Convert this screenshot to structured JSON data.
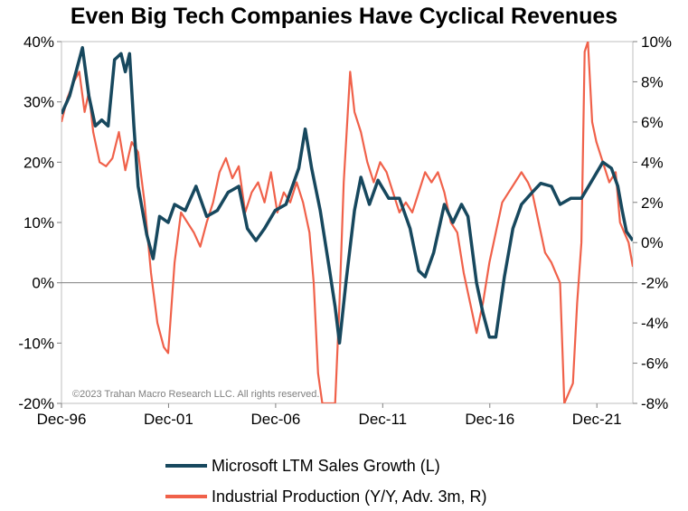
{
  "chart_data": {
    "type": "line",
    "title": "Even Big Tech Companies Have Cyclical Revenues",
    "x_ticks": [
      "Dec-96",
      "Dec-01",
      "Dec-06",
      "Dec-11",
      "Dec-16",
      "Dec-21"
    ],
    "x_range": [
      1996.92,
      2023.6
    ],
    "y_left": {
      "range": [
        -20,
        40
      ],
      "ticks": [
        "-20%",
        "-10%",
        "0%",
        "10%",
        "20%",
        "30%",
        "40%"
      ]
    },
    "y_right": {
      "range": [
        -8,
        10
      ],
      "ticks": [
        "-8%",
        "-6%",
        "-4%",
        "-2%",
        "0%",
        "2%",
        "4%",
        "6%",
        "8%",
        "10%"
      ]
    },
    "watermark": "©2023 Trahan Macro Research LLC. All rights reserved.",
    "series": [
      {
        "name": "Microsoft LTM Sales Growth (L)",
        "axis": "left",
        "color": "#17485e",
        "points": [
          [
            1996.92,
            28
          ],
          [
            1997.3,
            31
          ],
          [
            1997.6,
            35
          ],
          [
            1997.9,
            39
          ],
          [
            1998.2,
            31
          ],
          [
            1998.5,
            26
          ],
          [
            1998.8,
            27
          ],
          [
            1999.1,
            26
          ],
          [
            1999.4,
            37
          ],
          [
            1999.7,
            38
          ],
          [
            1999.9,
            35
          ],
          [
            2000.1,
            38
          ],
          [
            2000.3,
            26
          ],
          [
            2000.5,
            16
          ],
          [
            2000.9,
            8
          ],
          [
            2001.2,
            4
          ],
          [
            2001.5,
            11
          ],
          [
            2001.9,
            10
          ],
          [
            2002.2,
            13
          ],
          [
            2002.7,
            12
          ],
          [
            2003.2,
            16
          ],
          [
            2003.7,
            11
          ],
          [
            2004.2,
            12
          ],
          [
            2004.7,
            15
          ],
          [
            2005.2,
            16
          ],
          [
            2005.6,
            9
          ],
          [
            2006.0,
            7
          ],
          [
            2006.4,
            9
          ],
          [
            2006.9,
            12
          ],
          [
            2007.4,
            13
          ],
          [
            2008.0,
            19
          ],
          [
            2008.3,
            25.5
          ],
          [
            2008.6,
            19
          ],
          [
            2009.0,
            12
          ],
          [
            2009.4,
            3
          ],
          [
            2009.7,
            -4
          ],
          [
            2009.9,
            -10
          ],
          [
            2010.2,
            0
          ],
          [
            2010.6,
            12
          ],
          [
            2010.9,
            17.5
          ],
          [
            2011.3,
            13
          ],
          [
            2011.7,
            17
          ],
          [
            2012.2,
            14
          ],
          [
            2012.7,
            14
          ],
          [
            2013.2,
            9
          ],
          [
            2013.6,
            2
          ],
          [
            2013.9,
            1
          ],
          [
            2014.3,
            5
          ],
          [
            2014.8,
            13
          ],
          [
            2015.2,
            10
          ],
          [
            2015.6,
            13
          ],
          [
            2015.9,
            11
          ],
          [
            2016.3,
            0
          ],
          [
            2016.6,
            -5
          ],
          [
            2016.9,
            -9
          ],
          [
            2017.2,
            -9
          ],
          [
            2017.6,
            1
          ],
          [
            2018.0,
            9
          ],
          [
            2018.4,
            13
          ],
          [
            2018.9,
            15
          ],
          [
            2019.3,
            16.5
          ],
          [
            2019.8,
            16
          ],
          [
            2020.2,
            13
          ],
          [
            2020.7,
            14
          ],
          [
            2021.2,
            14
          ],
          [
            2021.7,
            17
          ],
          [
            2022.2,
            20
          ],
          [
            2022.6,
            19
          ],
          [
            2022.9,
            16
          ],
          [
            2023.1,
            12
          ],
          [
            2023.3,
            8.5
          ],
          [
            2023.6,
            7
          ]
        ]
      },
      {
        "name": "Industrial Production (Y/Y, Adv. 3m, R)",
        "axis": "right",
        "color": "#f0614a",
        "points": [
          [
            1996.92,
            6.0
          ],
          [
            1997.2,
            7.2
          ],
          [
            1997.5,
            8.0
          ],
          [
            1997.75,
            8.5
          ],
          [
            1998.0,
            6.5
          ],
          [
            1998.2,
            7.5
          ],
          [
            1998.4,
            5.5
          ],
          [
            1998.7,
            4.0
          ],
          [
            1999.0,
            3.8
          ],
          [
            1999.3,
            4.2
          ],
          [
            1999.6,
            5.5
          ],
          [
            1999.9,
            3.6
          ],
          [
            2000.2,
            5.0
          ],
          [
            2000.5,
            4.5
          ],
          [
            2000.8,
            2.0
          ],
          [
            2001.1,
            -1.5
          ],
          [
            2001.4,
            -4.0
          ],
          [
            2001.7,
            -5.2
          ],
          [
            2001.9,
            -5.5
          ],
          [
            2002.2,
            -1.0
          ],
          [
            2002.5,
            1.5
          ],
          [
            2002.8,
            1.0
          ],
          [
            2003.1,
            0.5
          ],
          [
            2003.4,
            -0.2
          ],
          [
            2003.7,
            1.0
          ],
          [
            2004.0,
            2.0
          ],
          [
            2004.3,
            3.5
          ],
          [
            2004.6,
            4.2
          ],
          [
            2004.9,
            3.2
          ],
          [
            2005.2,
            3.8
          ],
          [
            2005.5,
            1.5
          ],
          [
            2005.8,
            2.5
          ],
          [
            2006.1,
            3.0
          ],
          [
            2006.4,
            2.0
          ],
          [
            2006.7,
            3.5
          ],
          [
            2007.0,
            1.5
          ],
          [
            2007.3,
            2.5
          ],
          [
            2007.6,
            2.0
          ],
          [
            2007.9,
            3.0
          ],
          [
            2008.2,
            2.0
          ],
          [
            2008.5,
            0.5
          ],
          [
            2008.7,
            -2.0
          ],
          [
            2008.9,
            -6.5
          ],
          [
            2009.1,
            -8.0
          ],
          [
            2009.4,
            -8.0
          ],
          [
            2009.7,
            -8.0
          ],
          [
            2009.9,
            -3.0
          ],
          [
            2010.1,
            3.0
          ],
          [
            2010.4,
            8.5
          ],
          [
            2010.6,
            6.5
          ],
          [
            2010.9,
            5.5
          ],
          [
            2011.2,
            4.0
          ],
          [
            2011.5,
            3.0
          ],
          [
            2011.8,
            4.0
          ],
          [
            2012.1,
            3.5
          ],
          [
            2012.4,
            2.5
          ],
          [
            2012.7,
            1.5
          ],
          [
            2013.0,
            2.0
          ],
          [
            2013.3,
            1.5
          ],
          [
            2013.6,
            2.5
          ],
          [
            2013.9,
            3.5
          ],
          [
            2014.2,
            3.0
          ],
          [
            2014.5,
            3.5
          ],
          [
            2014.8,
            2.5
          ],
          [
            2015.1,
            1.0
          ],
          [
            2015.4,
            0.5
          ],
          [
            2015.7,
            -1.5
          ],
          [
            2016.0,
            -3.0
          ],
          [
            2016.3,
            -4.5
          ],
          [
            2016.6,
            -3.0
          ],
          [
            2016.9,
            -1.0
          ],
          [
            2017.2,
            0.5
          ],
          [
            2017.5,
            2.0
          ],
          [
            2017.8,
            2.5
          ],
          [
            2018.1,
            3.0
          ],
          [
            2018.4,
            3.5
          ],
          [
            2018.7,
            3.0
          ],
          [
            2018.9,
            2.5
          ],
          [
            2019.2,
            1.0
          ],
          [
            2019.5,
            -0.5
          ],
          [
            2019.8,
            -1.0
          ],
          [
            2020.0,
            -1.5
          ],
          [
            2020.2,
            -2.0
          ],
          [
            2020.4,
            -8.0
          ],
          [
            2020.8,
            -7.0
          ],
          [
            2021.0,
            -3.0
          ],
          [
            2021.2,
            0.0
          ],
          [
            2021.35,
            9.5
          ],
          [
            2021.5,
            10.0
          ],
          [
            2021.7,
            6.0
          ],
          [
            2021.9,
            5.0
          ],
          [
            2022.2,
            4.0
          ],
          [
            2022.5,
            3.0
          ],
          [
            2022.8,
            3.5
          ],
          [
            2023.0,
            1.0
          ],
          [
            2023.2,
            0.5
          ],
          [
            2023.4,
            0.0
          ],
          [
            2023.6,
            -1.2
          ]
        ]
      }
    ]
  }
}
